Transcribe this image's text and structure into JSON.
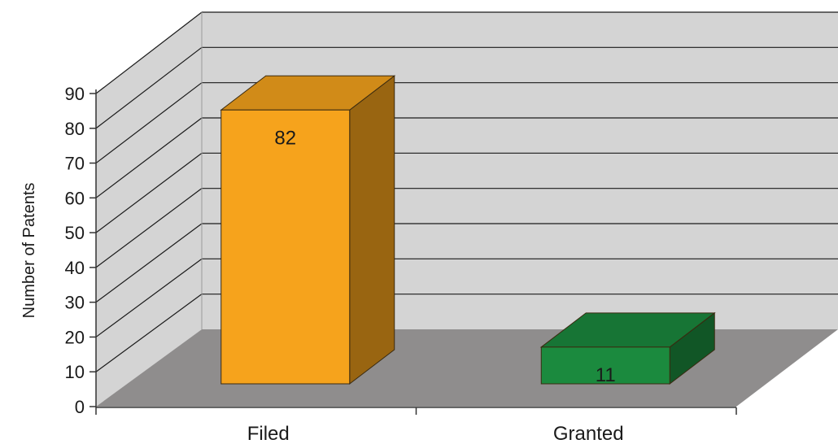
{
  "chart_data": {
    "type": "bar",
    "title": "",
    "xlabel": "",
    "ylabel": "Number of Patents",
    "categories": [
      "Filed",
      "Granted"
    ],
    "values": [
      82,
      11
    ],
    "data_labels": [
      "82",
      "11"
    ],
    "ylim": [
      0,
      90
    ],
    "yticks": [
      "0",
      "10",
      "20",
      "30",
      "40",
      "50",
      "60",
      "70",
      "80",
      "90"
    ],
    "grid": true,
    "legend": "none",
    "style": "3d-column",
    "colors": {
      "walls": "#d4d4d4",
      "floor": "#8f8d8d",
      "gridline": "#1a1a1a",
      "bars": [
        "#f6a31c",
        "#1b8a3e"
      ]
    }
  }
}
